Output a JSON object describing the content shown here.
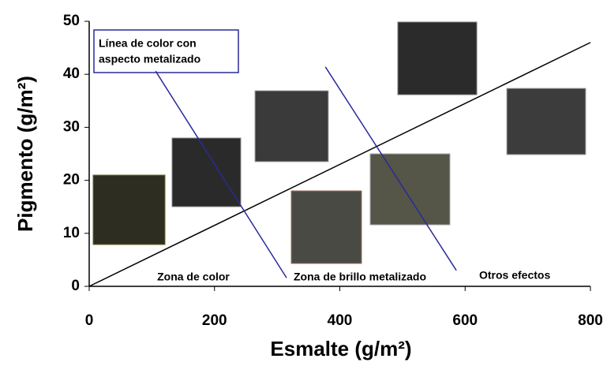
{
  "chart_data": {
    "type": "line",
    "xlabel": "Esmalte (g/m²)",
    "ylabel": "Pigmento (g/m²)",
    "xlim": [
      0,
      800
    ],
    "xticks": [
      0,
      200,
      400,
      600,
      800
    ],
    "ylim": [
      0,
      50
    ],
    "yticks": [
      0,
      10,
      20,
      30,
      40,
      50
    ],
    "lines": [
      {
        "x": [
          0,
          800
        ],
        "y": [
          0,
          46
        ],
        "color": "#000000"
      },
      {
        "x": [
          106,
          315
        ],
        "y": [
          40.6,
          1.6
        ],
        "color": "#2a2a9a"
      },
      {
        "x": [
          377,
          586
        ],
        "y": [
          41.4,
          3
        ],
        "color": "#2a2a9a"
      }
    ],
    "annotation_box": [
      "Línea de color con",
      "aspecto metalizado"
    ],
    "annotations": [
      "Zona de color",
      "Zona de brillo metalizado",
      "Otros efectos"
    ]
  }
}
